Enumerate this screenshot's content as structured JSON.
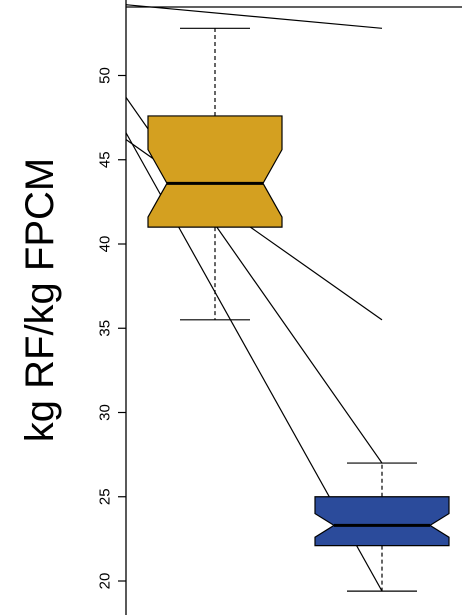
{
  "chart_data": {
    "type": "boxplot",
    "ylabel": "kg RF/kg FPCM",
    "yticks": [
      20,
      25,
      30,
      35,
      40,
      45,
      50
    ],
    "ylim": [
      18.9,
      54.2
    ],
    "notched": true,
    "grid": false,
    "series": [
      {
        "whisker_low": 35.5,
        "q1": 41.0,
        "notch_low": 41.6,
        "median": 43.6,
        "notch_high": 45.6,
        "q3": 47.6,
        "whisker_high": 52.8,
        "color": "#D4A020"
      },
      {
        "whisker_low": 19.4,
        "q1": 22.1,
        "notch_low": 22.6,
        "median": 23.3,
        "notch_high": 24.0,
        "q3": 25.0,
        "whisker_high": 27.0,
        "color": "#2B4B9B"
      }
    ],
    "lines": [
      [
        54.2,
        52.8
      ],
      [
        48.7,
        27.0
      ],
      [
        46.6,
        19.4
      ],
      [
        46.2,
        35.5
      ]
    ]
  }
}
